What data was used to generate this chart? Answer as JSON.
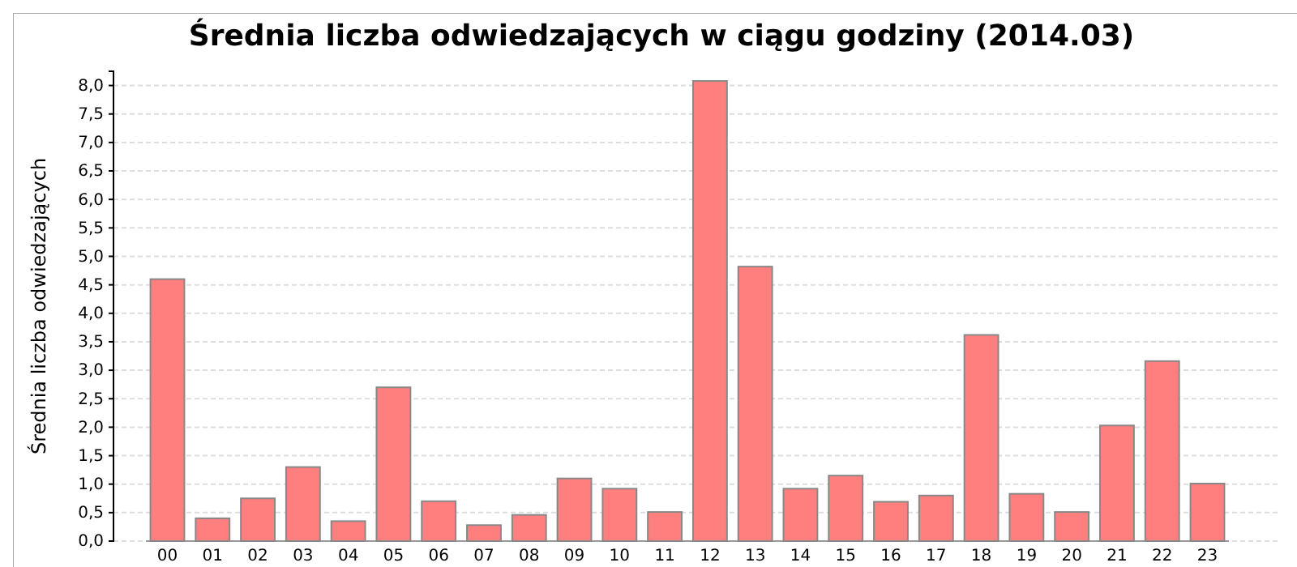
{
  "chart_data": {
    "type": "bar",
    "title": "Średnia liczba odwiedzających w ciągu godziny (2014.03)",
    "ylabel": "Średnia liczba odwiedzających",
    "categories": [
      "00",
      "01",
      "02",
      "03",
      "04",
      "05",
      "06",
      "07",
      "08",
      "09",
      "10",
      "11",
      "12",
      "13",
      "14",
      "15",
      "16",
      "17",
      "18",
      "19",
      "20",
      "21",
      "22",
      "23"
    ],
    "values": [
      4.6,
      0.4,
      0.75,
      1.3,
      0.35,
      2.7,
      0.7,
      0.28,
      0.46,
      1.1,
      0.92,
      0.51,
      8.08,
      4.82,
      0.92,
      1.15,
      0.69,
      0.8,
      3.62,
      0.83,
      0.51,
      2.03,
      3.16,
      1.01
    ],
    "color": "#ff7f7f",
    "ylim": [
      0,
      8.25
    ],
    "yticks": [
      {
        "value": 0,
        "label": "0,0"
      },
      {
        "value": 0.5,
        "label": "0,5"
      },
      {
        "value": 1,
        "label": "1,0"
      },
      {
        "value": 1.5,
        "label": "1,5"
      },
      {
        "value": 2,
        "label": "2,0"
      },
      {
        "value": 2.5,
        "label": "2,5"
      },
      {
        "value": 3,
        "label": "3,0"
      },
      {
        "value": 3.5,
        "label": "3,5"
      },
      {
        "value": 4,
        "label": "4,0"
      },
      {
        "value": 4.5,
        "label": "4,5"
      },
      {
        "value": 5,
        "label": "5,0"
      },
      {
        "value": 5.5,
        "label": "5,5"
      },
      {
        "value": 6,
        "label": "6,0"
      },
      {
        "value": 6.5,
        "label": "6,5"
      },
      {
        "value": 7,
        "label": "7,0"
      },
      {
        "value": 7.5,
        "label": "7,5"
      },
      {
        "value": 8,
        "label": "8,0"
      }
    ],
    "grid": "y"
  }
}
